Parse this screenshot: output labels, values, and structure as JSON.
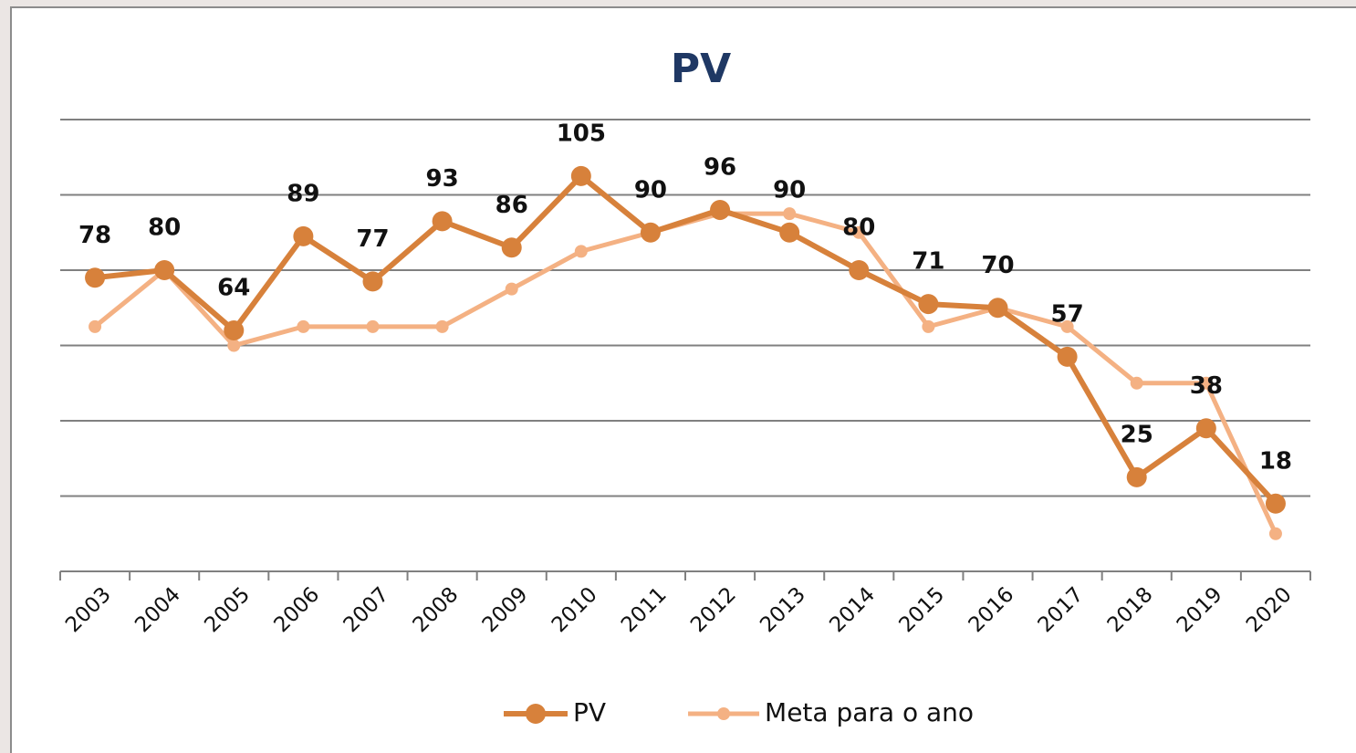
{
  "chart_data": {
    "type": "line",
    "title": "PV",
    "categories": [
      "2003",
      "2004",
      "2005",
      "2006",
      "2007",
      "2008",
      "2009",
      "2010",
      "2011",
      "2012",
      "2013",
      "2014",
      "2015",
      "2016",
      "2017",
      "2018",
      "2019",
      "2020"
    ],
    "series": [
      {
        "name": "PV",
        "color": "#d7813b",
        "values": [
          78,
          80,
          64,
          89,
          77,
          93,
          86,
          105,
          90,
          96,
          90,
          80,
          71,
          70,
          57,
          25,
          38,
          18
        ]
      },
      {
        "name": "Meta para o ano",
        "color": "#f4b183",
        "values": [
          65,
          80,
          60,
          65,
          65,
          65,
          75,
          85,
          90,
          95,
          95,
          90,
          65,
          70,
          65,
          50,
          50,
          10
        ]
      }
    ],
    "ylim": [
      0,
      120
    ],
    "yticks": [
      0,
      20,
      40,
      60,
      80,
      100,
      120
    ],
    "grid": true,
    "legend": "bottom"
  }
}
